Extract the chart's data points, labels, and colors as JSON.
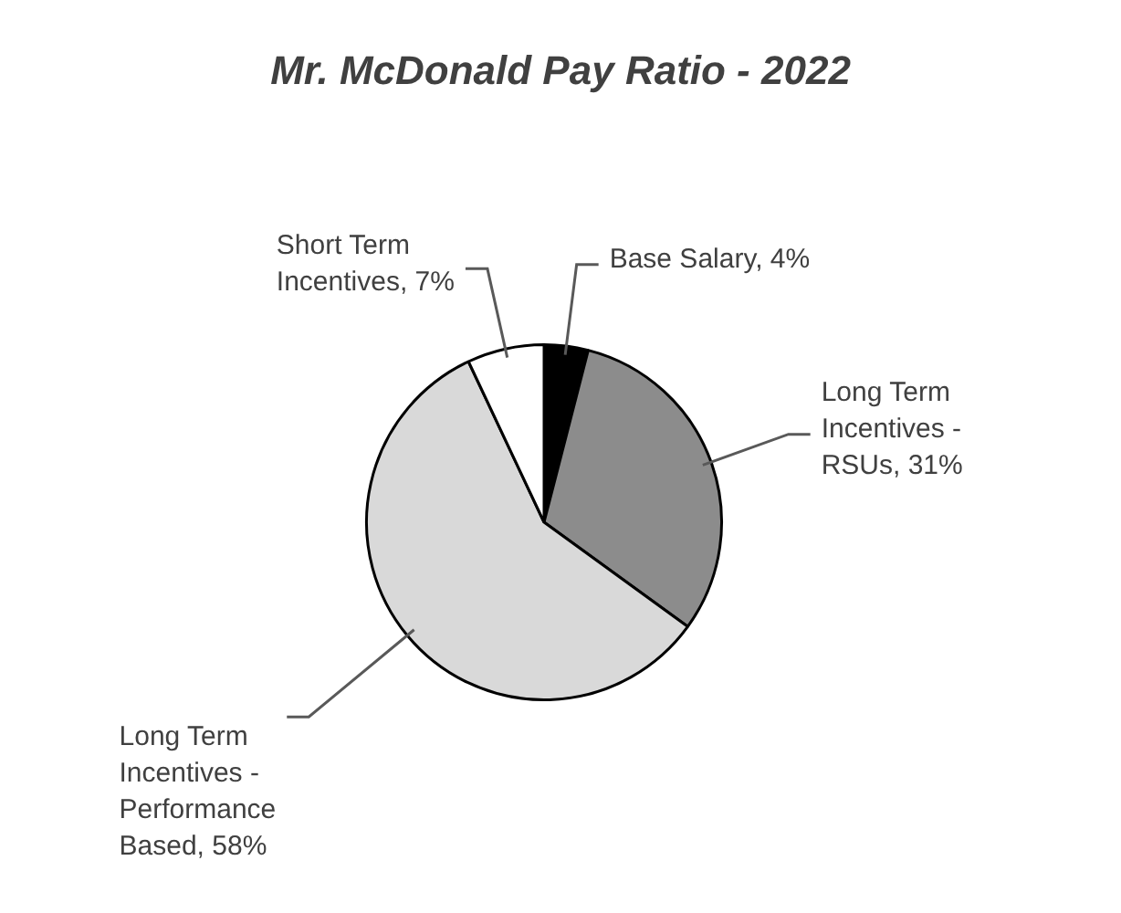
{
  "chart_data": {
    "type": "pie",
    "title": "Mr. McDonald Pay Ratio - 2022",
    "categories": [
      "Base Salary, 4%",
      "Long Term Incentives - RSUs, 31%",
      "Long Term Incentives - Performance Based, 58%",
      "Short Term Incentives, 7%"
    ],
    "values": [
      4,
      31,
      58,
      7
    ],
    "colors": [
      "#000000",
      "#8c8c8c",
      "#d9d9d9",
      "#ffffff"
    ],
    "legend": false
  }
}
